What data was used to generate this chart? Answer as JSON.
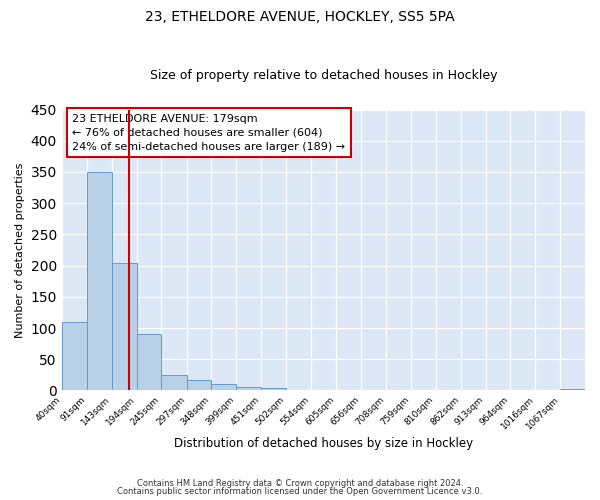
{
  "title": "23, ETHELDORE AVENUE, HOCKLEY, SS5 5PA",
  "subtitle": "Size of property relative to detached houses in Hockley",
  "xlabel": "Distribution of detached houses by size in Hockley",
  "ylabel": "Number of detached properties",
  "bar_heights": [
    110,
    350,
    204,
    90,
    24,
    16,
    10,
    6,
    4,
    0,
    0,
    0,
    0,
    0,
    0,
    0,
    0,
    0,
    0,
    0,
    3
  ],
  "bin_labels": [
    "40sqm",
    "91sqm",
    "143sqm",
    "194sqm",
    "245sqm",
    "297sqm",
    "348sqm",
    "399sqm",
    "451sqm",
    "502sqm",
    "554sqm",
    "605sqm",
    "656sqm",
    "708sqm",
    "759sqm",
    "810sqm",
    "862sqm",
    "913sqm",
    "964sqm",
    "1016sqm",
    "1067sqm"
  ],
  "bin_edges": [
    40,
    91,
    143,
    194,
    245,
    297,
    348,
    399,
    451,
    502,
    554,
    605,
    656,
    708,
    759,
    810,
    862,
    913,
    964,
    1016,
    1067,
    1118
  ],
  "bar_color": "#b8d0e8",
  "bar_edge_color": "#6699cc",
  "ylim": [
    0,
    450
  ],
  "yticks": [
    0,
    50,
    100,
    150,
    200,
    250,
    300,
    350,
    400,
    450
  ],
  "vline_x": 179,
  "vline_color": "#cc0000",
  "annotation_title": "23 ETHELDORE AVENUE: 179sqm",
  "annotation_line1": "← 76% of detached houses are smaller (604)",
  "annotation_line2": "24% of semi-detached houses are larger (189) →",
  "annotation_box_color": "#cc0000",
  "plot_bg_color": "#dce8f5",
  "fig_bg_color": "#ffffff",
  "footer1": "Contains HM Land Registry data © Crown copyright and database right 2024.",
  "footer2": "Contains public sector information licensed under the Open Government Licence v3.0.",
  "grid_color": "#c8d8e8",
  "title_fontsize": 10,
  "subtitle_fontsize": 9
}
